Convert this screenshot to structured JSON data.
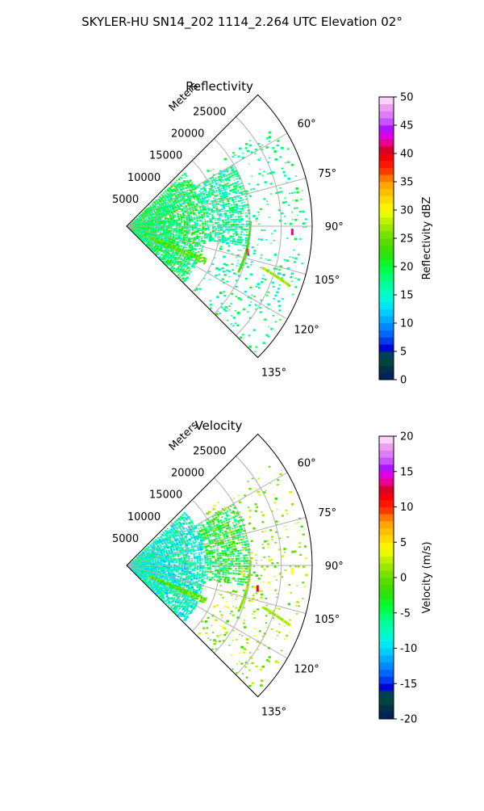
{
  "figure": {
    "title": "SKYLER-HU  SN14_202  1114_2.264 UTC Elevation 02°"
  },
  "chart_data": [
    {
      "type": "polar-sector-heatmap",
      "title": "Reflectivity",
      "radial_axis_label": "Meters",
      "radial_ticks": [
        5000,
        10000,
        15000,
        20000,
        25000
      ],
      "radial_range": [
        0,
        30000
      ],
      "azimuth_ticks_deg": [
        60,
        75,
        90,
        105,
        120,
        135
      ],
      "azimuth_range_deg": [
        45,
        135
      ],
      "grid": true,
      "colorbar": {
        "label": "Reflectivity dBZ",
        "ticks": [
          0,
          5,
          10,
          15,
          20,
          25,
          30,
          35,
          40,
          45,
          50
        ],
        "range": [
          0,
          50
        ]
      },
      "features": [
        {
          "kind": "dense-region",
          "az": [
            47,
            135
          ],
          "r": [
            0,
            13000
          ],
          "value": 19
        },
        {
          "kind": "dense-region",
          "az": [
            60,
            100
          ],
          "r": [
            13000,
            20000
          ],
          "value": 17
        },
        {
          "kind": "sparse-region",
          "az": [
            55,
            135
          ],
          "r": [
            15000,
            29000
          ],
          "value": 17
        },
        {
          "kind": "band",
          "az": [
            112,
            116
          ],
          "r": [
            4000,
            14000
          ],
          "value": 24
        },
        {
          "kind": "line",
          "az": [
            88,
            112
          ],
          "r": [
            20000,
            19500
          ],
          "value": 23
        },
        {
          "kind": "line",
          "az": [
            107,
            110
          ],
          "r": [
            23000,
            28000
          ],
          "value": 27
        },
        {
          "kind": "point",
          "az": 92,
          "r": 26800,
          "value": 42
        },
        {
          "kind": "point",
          "az": 102,
          "r": 20000,
          "value": 40
        }
      ]
    },
    {
      "type": "polar-sector-heatmap",
      "title": "Velocity",
      "radial_axis_label": "Meters",
      "radial_ticks": [
        5000,
        10000,
        15000,
        20000,
        25000
      ],
      "radial_range": [
        0,
        30000
      ],
      "azimuth_ticks_deg": [
        60,
        75,
        90,
        105,
        120,
        135
      ],
      "azimuth_range_deg": [
        45,
        135
      ],
      "grid": true,
      "colorbar": {
        "label": "Velocity (m/s)",
        "ticks": [
          -20,
          -15,
          -10,
          -5,
          0,
          5,
          10,
          15,
          20
        ],
        "range": [
          -20,
          20
        ]
      },
      "features": [
        {
          "kind": "dense-region",
          "az": [
            47,
            135
          ],
          "r": [
            0,
            13000
          ],
          "value": -8
        },
        {
          "kind": "dense-region",
          "az": [
            60,
            100
          ],
          "r": [
            13000,
            20000
          ],
          "value": -4
        },
        {
          "kind": "sparse-region",
          "az": [
            55,
            135
          ],
          "r": [
            15000,
            29000
          ],
          "value": 1
        },
        {
          "kind": "band",
          "az": [
            112,
            116
          ],
          "r": [
            4000,
            14000
          ],
          "value": 0
        },
        {
          "kind": "line",
          "az": [
            88,
            112
          ],
          "r": [
            20000,
            19500
          ],
          "value": 1
        },
        {
          "kind": "line",
          "az": [
            107,
            110
          ],
          "r": [
            23000,
            28000
          ],
          "value": 2
        },
        {
          "kind": "point",
          "az": 92,
          "r": 26800,
          "value": 4
        },
        {
          "kind": "point",
          "az": 100,
          "r": 21500,
          "value": 12
        }
      ]
    }
  ]
}
